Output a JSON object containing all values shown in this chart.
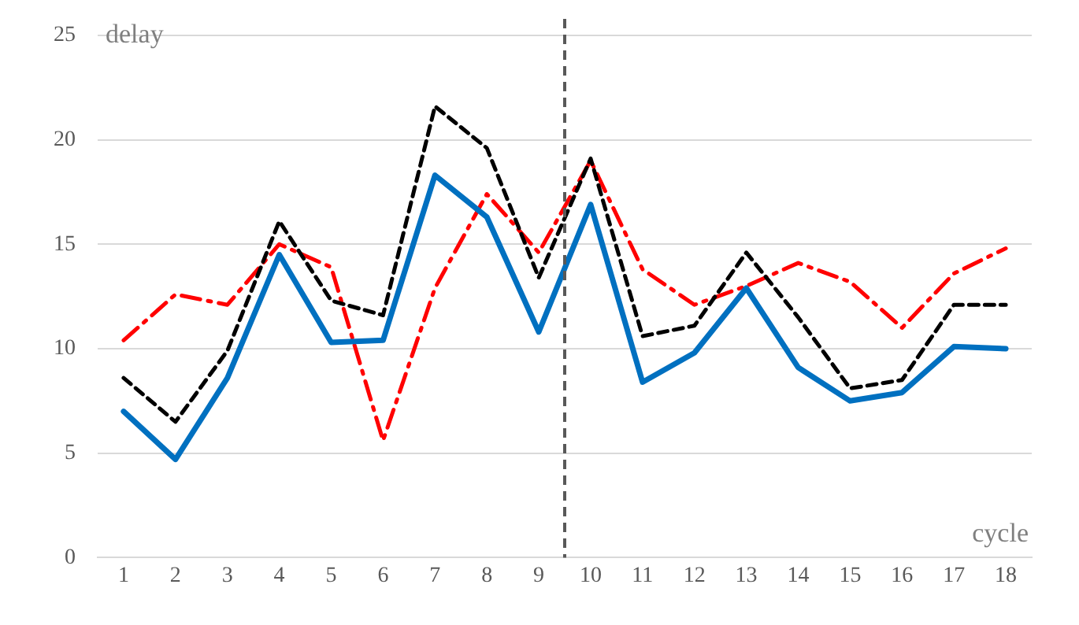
{
  "chart_data": {
    "type": "line",
    "xlabel": "cycle",
    "ylabel": "delay",
    "x": [
      1,
      2,
      3,
      4,
      5,
      6,
      7,
      8,
      9,
      10,
      11,
      12,
      13,
      14,
      15,
      16,
      17,
      18
    ],
    "xlim": [
      0.5,
      18.5
    ],
    "xticks": [
      1,
      2,
      3,
      4,
      5,
      6,
      7,
      8,
      9,
      10,
      11,
      12,
      13,
      14,
      15,
      16,
      17,
      18
    ],
    "ylim": [
      0,
      25
    ],
    "yticks": [
      0,
      5,
      10,
      15,
      20,
      25
    ],
    "grid": "y",
    "legend": false,
    "marker": "none",
    "series": [
      {
        "color": "#0070c0",
        "line_style": "solid",
        "values": [
          7,
          4.7,
          8.6,
          14.5,
          10.3,
          10.4,
          18.3,
          16.3,
          10.8,
          16.9,
          8.4,
          9.8,
          12.9,
          9.1,
          7.5,
          7.9,
          10.1,
          10.0
        ]
      },
      {
        "color": "#000000",
        "line_style": "dashed",
        "values": [
          8.6,
          6.5,
          9.9,
          16.1,
          12.3,
          11.6,
          21.6,
          19.6,
          13.4,
          19.1,
          10.6,
          11.1,
          14.6,
          11.5,
          8.1,
          8.5,
          12.1,
          12.1
        ]
      },
      {
        "color": "#ff0000",
        "line_style": "dashdot",
        "values": [
          10.4,
          12.6,
          12.1,
          15.0,
          13.9,
          5.6,
          12.9,
          17.4,
          14.6,
          19.0,
          13.8,
          12.1,
          13.0,
          14.1,
          13.2,
          11.0,
          13.6,
          14.8
        ]
      }
    ],
    "ref_lines": [
      {
        "axis": "x",
        "value": 9.5,
        "color": "#595959",
        "line_style": "dashed"
      }
    ]
  }
}
